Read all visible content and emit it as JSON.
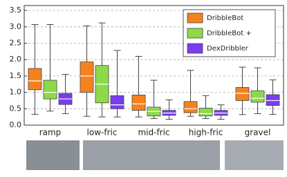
{
  "chart_data": {
    "type": "box",
    "categories": [
      "ramp",
      "low-fric",
      "mid-fric",
      "high-fric",
      "gravel"
    ],
    "ylim": [
      0,
      3.65
    ],
    "yticks": [
      {
        "value": 0,
        "label": "0.0"
      },
      {
        "value": 0.5,
        "label": "0.5"
      },
      {
        "value": 1,
        "label": "1.0"
      },
      {
        "value": 1.5,
        "label": "1.5"
      },
      {
        "value": 2,
        "label": "2.0"
      },
      {
        "value": 2.5,
        "label": "2.5"
      },
      {
        "value": 3,
        "label": "3.0"
      },
      {
        "value": 3.5,
        "label": "3.5"
      }
    ],
    "grid": true,
    "legend": "upper right",
    "series": [
      {
        "name": "DribbleBot",
        "color": "#f5821f",
        "values": [
          {
            "min": 0.33,
            "q1": 1.08,
            "median": 1.35,
            "q3": 1.73,
            "max": 3.07
          },
          {
            "min": 0.27,
            "q1": 1.0,
            "median": 1.5,
            "q3": 1.93,
            "max": 3.03
          },
          {
            "min": 0.25,
            "q1": 0.45,
            "median": 0.65,
            "q3": 0.92,
            "max": 2.1
          },
          {
            "min": 0.27,
            "q1": 0.38,
            "median": 0.5,
            "q3": 0.72,
            "max": 1.67
          },
          {
            "min": 0.32,
            "q1": 0.75,
            "median": 0.97,
            "q3": 1.15,
            "max": 1.77
          }
        ]
      },
      {
        "name": "DribbleBot +",
        "color": "#8ed94a",
        "values": [
          {
            "min": 0.43,
            "q1": 0.8,
            "median": 1.0,
            "q3": 1.37,
            "max": 3.07
          },
          {
            "min": 0.25,
            "q1": 0.68,
            "median": 1.25,
            "q3": 1.82,
            "max": 3.12
          },
          {
            "min": 0.2,
            "q1": 0.28,
            "median": 0.42,
            "q3": 0.55,
            "max": 1.37
          },
          {
            "min": 0.2,
            "q1": 0.28,
            "median": 0.35,
            "q3": 0.52,
            "max": 0.9
          },
          {
            "min": 0.35,
            "q1": 0.7,
            "median": 0.82,
            "q3": 1.05,
            "max": 1.75
          }
        ]
      },
      {
        "name": "DexDribbler",
        "color": "#7a3cf0",
        "values": [
          {
            "min": 0.35,
            "q1": 0.63,
            "median": 0.8,
            "q3": 0.97,
            "max": 1.55
          },
          {
            "min": 0.25,
            "q1": 0.5,
            "median": 0.62,
            "q3": 0.9,
            "max": 2.28
          },
          {
            "min": 0.18,
            "q1": 0.3,
            "median": 0.37,
            "q3": 0.45,
            "max": 0.77
          },
          {
            "min": 0.18,
            "q1": 0.3,
            "median": 0.37,
            "q3": 0.45,
            "max": 0.62
          },
          {
            "min": 0.33,
            "q1": 0.6,
            "median": 0.75,
            "q3": 0.93,
            "max": 1.38
          }
        ]
      }
    ]
  }
}
